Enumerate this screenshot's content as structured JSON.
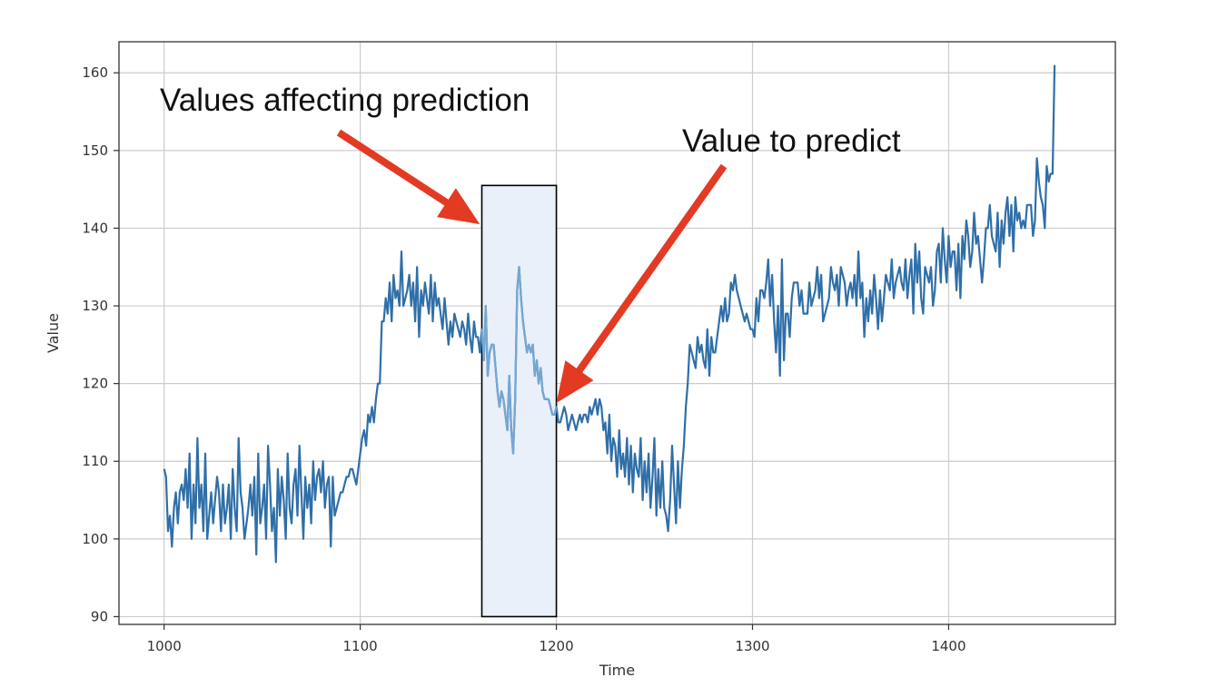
{
  "chart_data": {
    "type": "line",
    "title": "",
    "xlabel": "Time",
    "ylabel": "Value",
    "xlim": [
      977,
      1485
    ],
    "ylim": [
      89,
      164
    ],
    "xticks": [
      1000,
      1100,
      1200,
      1300,
      1400
    ],
    "yticks": [
      90,
      100,
      110,
      120,
      130,
      140,
      150,
      160
    ],
    "grid": true,
    "legend": "none",
    "colors": {
      "series": "#2f6fa8",
      "highlight_series": "#77a7d1",
      "window_fill": "#e9f0f9",
      "window_edge": "#000000",
      "arrow": "#e33a24"
    },
    "highlight_window": {
      "x_start": 1162,
      "x_end": 1200,
      "y_start": 90,
      "y_end": 145.5
    },
    "annotations": [
      {
        "id": "values-affecting",
        "text": "Values affecting prediction",
        "points_to": [
          1161,
          140.5
        ]
      },
      {
        "id": "value-to-predict",
        "text": "Value to predict",
        "points_to": [
          1200,
          117.5
        ]
      }
    ],
    "series": [
      {
        "x_start": 1000,
        "x_step": 1,
        "values": [
          109,
          108,
          101,
          103,
          99,
          104,
          106,
          102,
          106,
          107,
          105,
          109,
          104,
          111,
          100,
          107,
          102,
          113,
          104,
          107,
          101,
          111,
          100,
          103,
          106,
          102,
          105,
          108,
          106,
          101,
          107,
          102,
          104,
          107,
          100,
          109,
          104,
          101,
          113,
          106,
          104,
          100,
          102,
          104,
          107,
          103,
          108,
          98,
          111,
          102,
          104,
          107,
          100,
          112,
          107,
          101,
          104,
          97,
          109,
          103,
          108,
          105,
          100,
          111,
          104,
          102,
          107,
          109,
          103,
          112,
          106,
          100,
          108,
          104,
          107,
          102,
          110,
          105,
          108,
          109,
          106,
          110,
          104,
          107,
          108,
          99,
          108,
          103,
          104,
          105,
          106,
          106,
          107,
          108,
          108,
          109,
          109,
          108,
          107,
          109,
          111,
          113,
          114,
          112,
          116,
          115,
          117,
          115,
          118,
          120,
          120,
          128,
          128,
          131,
          129,
          133,
          128,
          134,
          131,
          132,
          130,
          137,
          130,
          131,
          132,
          134,
          130,
          133,
          128,
          135,
          126,
          132,
          130,
          133,
          131,
          129,
          134,
          128,
          133,
          130,
          131,
          129,
          127,
          131,
          128,
          125,
          128,
          126,
          129,
          128,
          127,
          126,
          128,
          127,
          125,
          129,
          126,
          124,
          128,
          126,
          126,
          124,
          127,
          123,
          130,
          121,
          124,
          125,
          125,
          122,
          119,
          117,
          119,
          118,
          116,
          114,
          121,
          114,
          111,
          118,
          132,
          135,
          131,
          128,
          126,
          124,
          125,
          124,
          125,
          121,
          123,
          120,
          122,
          119,
          118,
          118,
          118,
          117,
          116,
          116,
          117,
          115,
          115,
          116,
          117,
          116,
          114,
          115,
          116,
          115,
          114,
          115,
          116,
          115,
          116,
          116,
          115,
          117,
          116,
          117,
          118,
          116,
          118,
          117,
          114,
          115,
          111,
          116,
          110,
          113,
          112,
          108,
          114,
          109,
          111,
          108,
          113,
          107,
          112,
          106,
          111,
          109,
          108,
          113,
          105,
          110,
          106,
          111,
          104,
          108,
          113,
          103,
          109,
          104,
          110,
          104,
          103,
          101,
          105,
          112,
          107,
          102,
          110,
          104,
          109,
          112,
          117,
          120,
          125,
          124,
          123,
          122,
          126,
          124,
          125,
          123,
          122,
          127,
          121,
          126,
          124,
          124,
          126,
          128,
          130,
          128,
          131,
          128,
          129,
          133,
          132,
          134,
          132,
          131,
          130,
          129,
          128,
          129,
          128,
          127,
          127,
          126,
          131,
          128,
          132,
          132,
          131,
          133,
          136,
          130,
          134,
          128,
          124,
          130,
          121,
          136,
          123,
          129,
          129,
          126,
          131,
          133,
          133,
          133,
          130,
          132,
          129,
          129,
          129,
          133,
          130,
          131,
          132,
          135,
          131,
          134,
          128,
          129,
          130,
          131,
          135,
          133,
          132,
          134,
          130,
          135,
          134,
          133,
          130,
          132,
          133,
          131,
          134,
          130,
          137,
          131,
          133,
          126,
          131,
          128,
          132,
          129,
          134,
          131,
          127,
          132,
          128,
          131,
          134,
          133,
          132,
          136,
          131,
          133,
          134,
          135,
          133,
          132,
          136,
          131,
          134,
          136,
          129,
          138,
          133,
          137,
          131,
          129,
          135,
          134,
          133,
          135,
          130,
          132,
          137,
          138,
          133,
          140,
          136,
          133,
          139,
          135,
          137,
          137,
          132,
          138,
          131,
          139,
          136,
          141,
          139,
          135,
          137,
          142,
          138,
          139,
          136,
          133,
          136,
          140,
          140,
          143,
          139,
          138,
          137,
          142,
          135,
          141,
          138,
          142,
          144,
          139,
          143,
          137,
          144,
          141,
          142,
          140,
          141,
          140,
          143,
          143,
          143,
          139,
          141,
          149,
          146,
          144,
          143,
          140,
          148,
          146,
          147,
          147,
          161
        ]
      }
    ]
  }
}
